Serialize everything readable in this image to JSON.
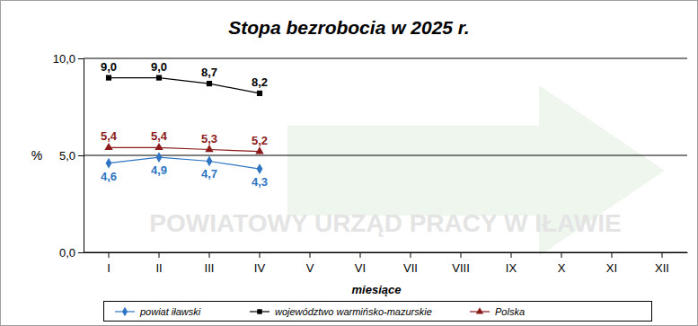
{
  "chart_data": {
    "type": "line",
    "title": "Stopa bezrobocia w 2025 r.",
    "x_label": "miesiące",
    "y_label": "%",
    "annotations": [
      "POWIATOWY URZĄD PRACY W IŁAWIE"
    ],
    "categories": [
      "I",
      "II",
      "III",
      "IV",
      "V",
      "VI",
      "VII",
      "VIII",
      "IX",
      "X",
      "XI",
      "XII"
    ],
    "series": [
      {
        "name": "powiat iławski",
        "color": "#2e75c4",
        "marker": "diamond",
        "values": [
          4.6,
          4.9,
          4.7,
          4.3,
          null,
          null,
          null,
          null,
          null,
          null,
          null,
          null
        ],
        "value_labels": [
          "4,6",
          "4,9",
          "4,7",
          "4,3",
          null,
          null,
          null,
          null,
          null,
          null,
          null,
          null
        ]
      },
      {
        "name": "województwo warmińsko-mazurskie",
        "color": "#000000",
        "marker": "square",
        "values": [
          9.0,
          9.0,
          8.7,
          8.2,
          null,
          null,
          null,
          null,
          null,
          null,
          null,
          null
        ],
        "value_labels": [
          "9,0",
          "9,0",
          "8,7",
          "8,2",
          null,
          null,
          null,
          null,
          null,
          null,
          null,
          null
        ]
      },
      {
        "name": "Polska",
        "color": "#8b1a1a",
        "marker": "triangle",
        "values": [
          5.4,
          5.4,
          5.3,
          5.2,
          null,
          null,
          null,
          null,
          null,
          null,
          null,
          null
        ],
        "value_labels": [
          "5,4",
          "5,4",
          "5,3",
          "5,2",
          null,
          null,
          null,
          null,
          null,
          null,
          null,
          null
        ]
      }
    ],
    "ylim": [
      0,
      10
    ],
    "yticks": [
      {
        "value": 0,
        "label": "0,0"
      },
      {
        "value": 5,
        "label": "5,0"
      },
      {
        "value": 10,
        "label": "10,0"
      }
    ],
    "grid": true,
    "data_labels": true,
    "legend": "bottom"
  }
}
